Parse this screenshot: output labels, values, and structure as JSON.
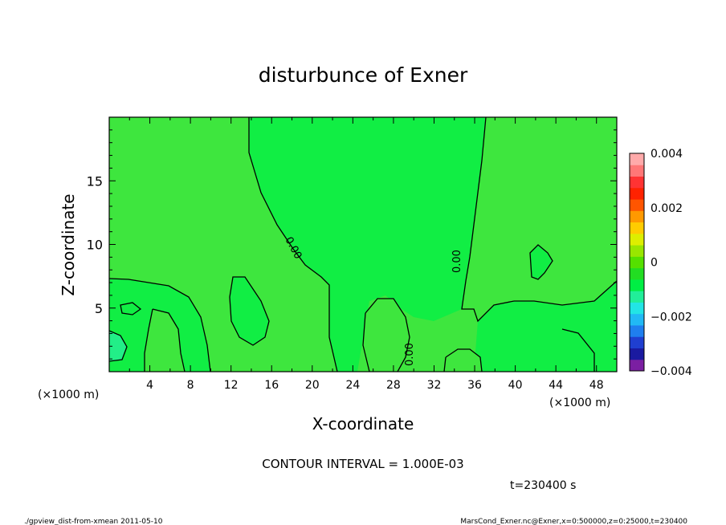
{
  "chart_data": {
    "type": "heatmap",
    "title": "disturbunce of Exner",
    "xlabel": "X-coordinate",
    "ylabel": "Z-coordinate",
    "x_unit": "(×1000 m)",
    "y_unit": "(×1000 m)",
    "xlim": [
      0,
      50
    ],
    "ylim": [
      0,
      20
    ],
    "x_ticks": [
      "4",
      "8",
      "12",
      "16",
      "20",
      "24",
      "28",
      "32",
      "36",
      "40",
      "44",
      "48"
    ],
    "y_ticks": [
      "5",
      "10",
      "15"
    ],
    "contour_labels": [
      "0.00",
      "0.00",
      "0.00"
    ],
    "contour_interval_text": "CONTOUR INTERVAL = 1.000E-03",
    "time_text": "t=230400 s",
    "colorbar": {
      "min": -0.004,
      "max": 0.004,
      "tick_labels": [
        "0.004",
        "0.002",
        "0",
        "−0.002",
        "−0.004"
      ],
      "colors": [
        "#7b1fa2",
        "#1a1aa0",
        "#1f3fd0",
        "#1f7fef",
        "#21b9f5",
        "#22e5e5",
        "#21ee99",
        "#00ee44",
        "#22dd22",
        "#55e000",
        "#99e600",
        "#ddee00",
        "#ffcc00",
        "#ff9900",
        "#ff5500",
        "#ff2200",
        "#ff3333",
        "#ff7777",
        "#ffaaaa"
      ]
    },
    "field_colors": {
      "slightly_positive": "#3ee63e",
      "near_zero": "#11ee44",
      "slightly_negative": "#22ee88"
    }
  },
  "footer": {
    "left": "./gpview_dist-from-xmean  2011-05-10",
    "right": "MarsCond_Exner.nc@Exner,x=0:500000,z=0:25000,t=230400"
  }
}
